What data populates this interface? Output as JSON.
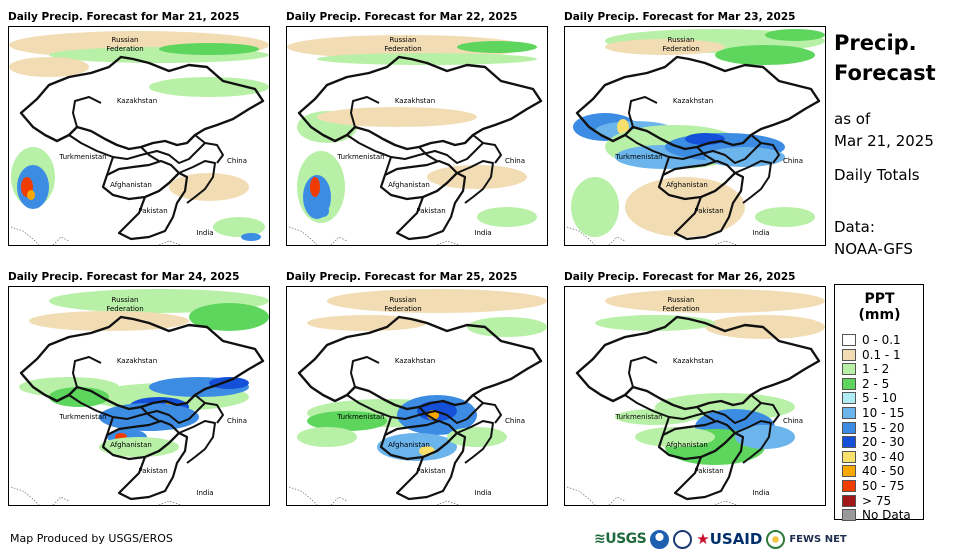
{
  "panels": [
    {
      "title": "Daily Precip. Forecast for Mar 21, 2025"
    },
    {
      "title": "Daily Precip. Forecast for Mar 22, 2025"
    },
    {
      "title": "Daily Precip. Forecast for Mar 23, 2025"
    },
    {
      "title": "Daily Precip. Forecast for Mar 24, 2025"
    },
    {
      "title": "Daily Precip. Forecast for Mar 25, 2025"
    },
    {
      "title": "Daily Precip. Forecast for Mar 26, 2025"
    }
  ],
  "map_labels": {
    "russia_line1": "Russian",
    "russia_line2": "Federation",
    "kazakhstan": "Kazakhstan",
    "turkmenistan": "Turkmenistan",
    "afghanistan": "Afghanistan",
    "pakistan": "Pakistan",
    "china": "China",
    "india": "India"
  },
  "sidebar": {
    "title_line1": "Precip.",
    "title_line2": "Forecast",
    "as_of_label": "as of",
    "as_of_date": "Mar 21, 2025",
    "totals": "Daily Totals",
    "data_label": "Data:",
    "data_source": "NOAA-GFS"
  },
  "legend": {
    "title": "PPT (mm)",
    "items": [
      {
        "label": "0 - 0.1",
        "color": "#ffffff"
      },
      {
        "label": "0.1 - 1",
        "color": "#f2dcb4"
      },
      {
        "label": "1 - 2",
        "color": "#b9f0a8"
      },
      {
        "label": "2 - 5",
        "color": "#5ed65e"
      },
      {
        "label": "5 - 10",
        "color": "#b0ecf4"
      },
      {
        "label": "10 - 15",
        "color": "#6cb4ec"
      },
      {
        "label": "15 - 20",
        "color": "#3c8ce4"
      },
      {
        "label": "20 - 30",
        "color": "#1450d8"
      },
      {
        "label": "30 - 40",
        "color": "#f8e06c"
      },
      {
        "label": "40 - 50",
        "color": "#f8a800"
      },
      {
        "label": "50 - 75",
        "color": "#f03c00"
      },
      {
        "label": "> 75",
        "color": "#a01818"
      },
      {
        "label": "No Data",
        "color": "#999999"
      }
    ]
  },
  "footer": {
    "credit": "Map Produced by USGS/EROS",
    "logo_usgs": "USGS",
    "logo_usaid": "USAID",
    "logo_fews": "FEWS NET"
  }
}
